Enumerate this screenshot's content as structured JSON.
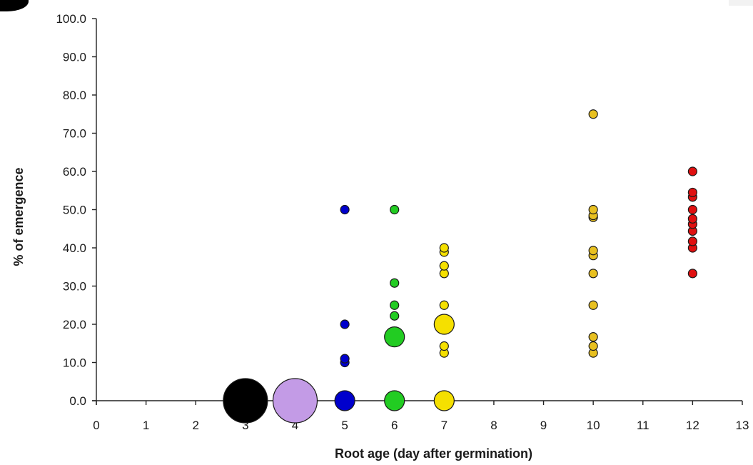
{
  "chart_data": {
    "type": "scatter",
    "title": "",
    "xlabel": "Root age (day after germination)",
    "ylabel": "% of emergence",
    "x_ticks": [
      "0",
      "1",
      "2",
      "3",
      "4",
      "5",
      "6",
      "7",
      "8",
      "9",
      "10",
      "11",
      "12",
      "13"
    ],
    "y_ticks": [
      "0.0",
      "10.0",
      "20.0",
      "30.0",
      "40.0",
      "50.0",
      "60.0",
      "70.0",
      "80.0",
      "90.0",
      "100.0"
    ],
    "ylim": [
      0,
      100
    ],
    "grid": false,
    "legend": "none",
    "series": [
      {
        "x_label": "3",
        "color": "#000000",
        "points": [
          {
            "y": 0,
            "size": "large"
          }
        ]
      },
      {
        "x_label": "4",
        "color": "#c39be6",
        "points": [
          {
            "y": 0,
            "size": "large"
          }
        ]
      },
      {
        "x_label": "5",
        "color": "#0000cc",
        "points": [
          {
            "y": 0,
            "size": "medium"
          },
          {
            "y": 10,
            "size": "small"
          },
          {
            "y": 11,
            "size": "small"
          },
          {
            "y": 20,
            "size": "small"
          },
          {
            "y": 50,
            "size": "small"
          }
        ]
      },
      {
        "x_label": "6",
        "color": "#22cc22",
        "points": [
          {
            "y": 0,
            "size": "medium"
          },
          {
            "y": 16.7,
            "size": "medium"
          },
          {
            "y": 22.2,
            "size": "small"
          },
          {
            "y": 25,
            "size": "small"
          },
          {
            "y": 30.8,
            "size": "small"
          },
          {
            "y": 50,
            "size": "small"
          }
        ]
      },
      {
        "x_label": "7",
        "color": "#f5e000",
        "points": [
          {
            "y": 0,
            "size": "medium"
          },
          {
            "y": 12.5,
            "size": "small"
          },
          {
            "y": 14.3,
            "size": "small"
          },
          {
            "y": 20,
            "size": "medium"
          },
          {
            "y": 25,
            "size": "small"
          },
          {
            "y": 33.3,
            "size": "small"
          },
          {
            "y": 35.3,
            "size": "small"
          },
          {
            "y": 38.9,
            "size": "small"
          },
          {
            "y": 40,
            "size": "small"
          }
        ]
      },
      {
        "x_label": "10",
        "color": "#e8c020",
        "points": [
          {
            "y": 12.5,
            "size": "small"
          },
          {
            "y": 14.3,
            "size": "small"
          },
          {
            "y": 16.7,
            "size": "small"
          },
          {
            "y": 25,
            "size": "small"
          },
          {
            "y": 33.3,
            "size": "small"
          },
          {
            "y": 38,
            "size": "small"
          },
          {
            "y": 39.3,
            "size": "small"
          },
          {
            "y": 48,
            "size": "small"
          },
          {
            "y": 48.5,
            "size": "small"
          },
          {
            "y": 50,
            "size": "small"
          },
          {
            "y": 75,
            "size": "small"
          }
        ]
      },
      {
        "x_label": "12",
        "color": "#e01010",
        "points": [
          {
            "y": 33.3,
            "size": "small"
          },
          {
            "y": 40,
            "size": "small"
          },
          {
            "y": 41.7,
            "size": "small"
          },
          {
            "y": 44.4,
            "size": "small"
          },
          {
            "y": 46.2,
            "size": "small"
          },
          {
            "y": 47.6,
            "size": "small"
          },
          {
            "y": 50,
            "size": "small"
          },
          {
            "y": 53.3,
            "size": "small"
          },
          {
            "y": 54.5,
            "size": "small"
          },
          {
            "y": 60,
            "size": "small"
          }
        ]
      }
    ]
  }
}
